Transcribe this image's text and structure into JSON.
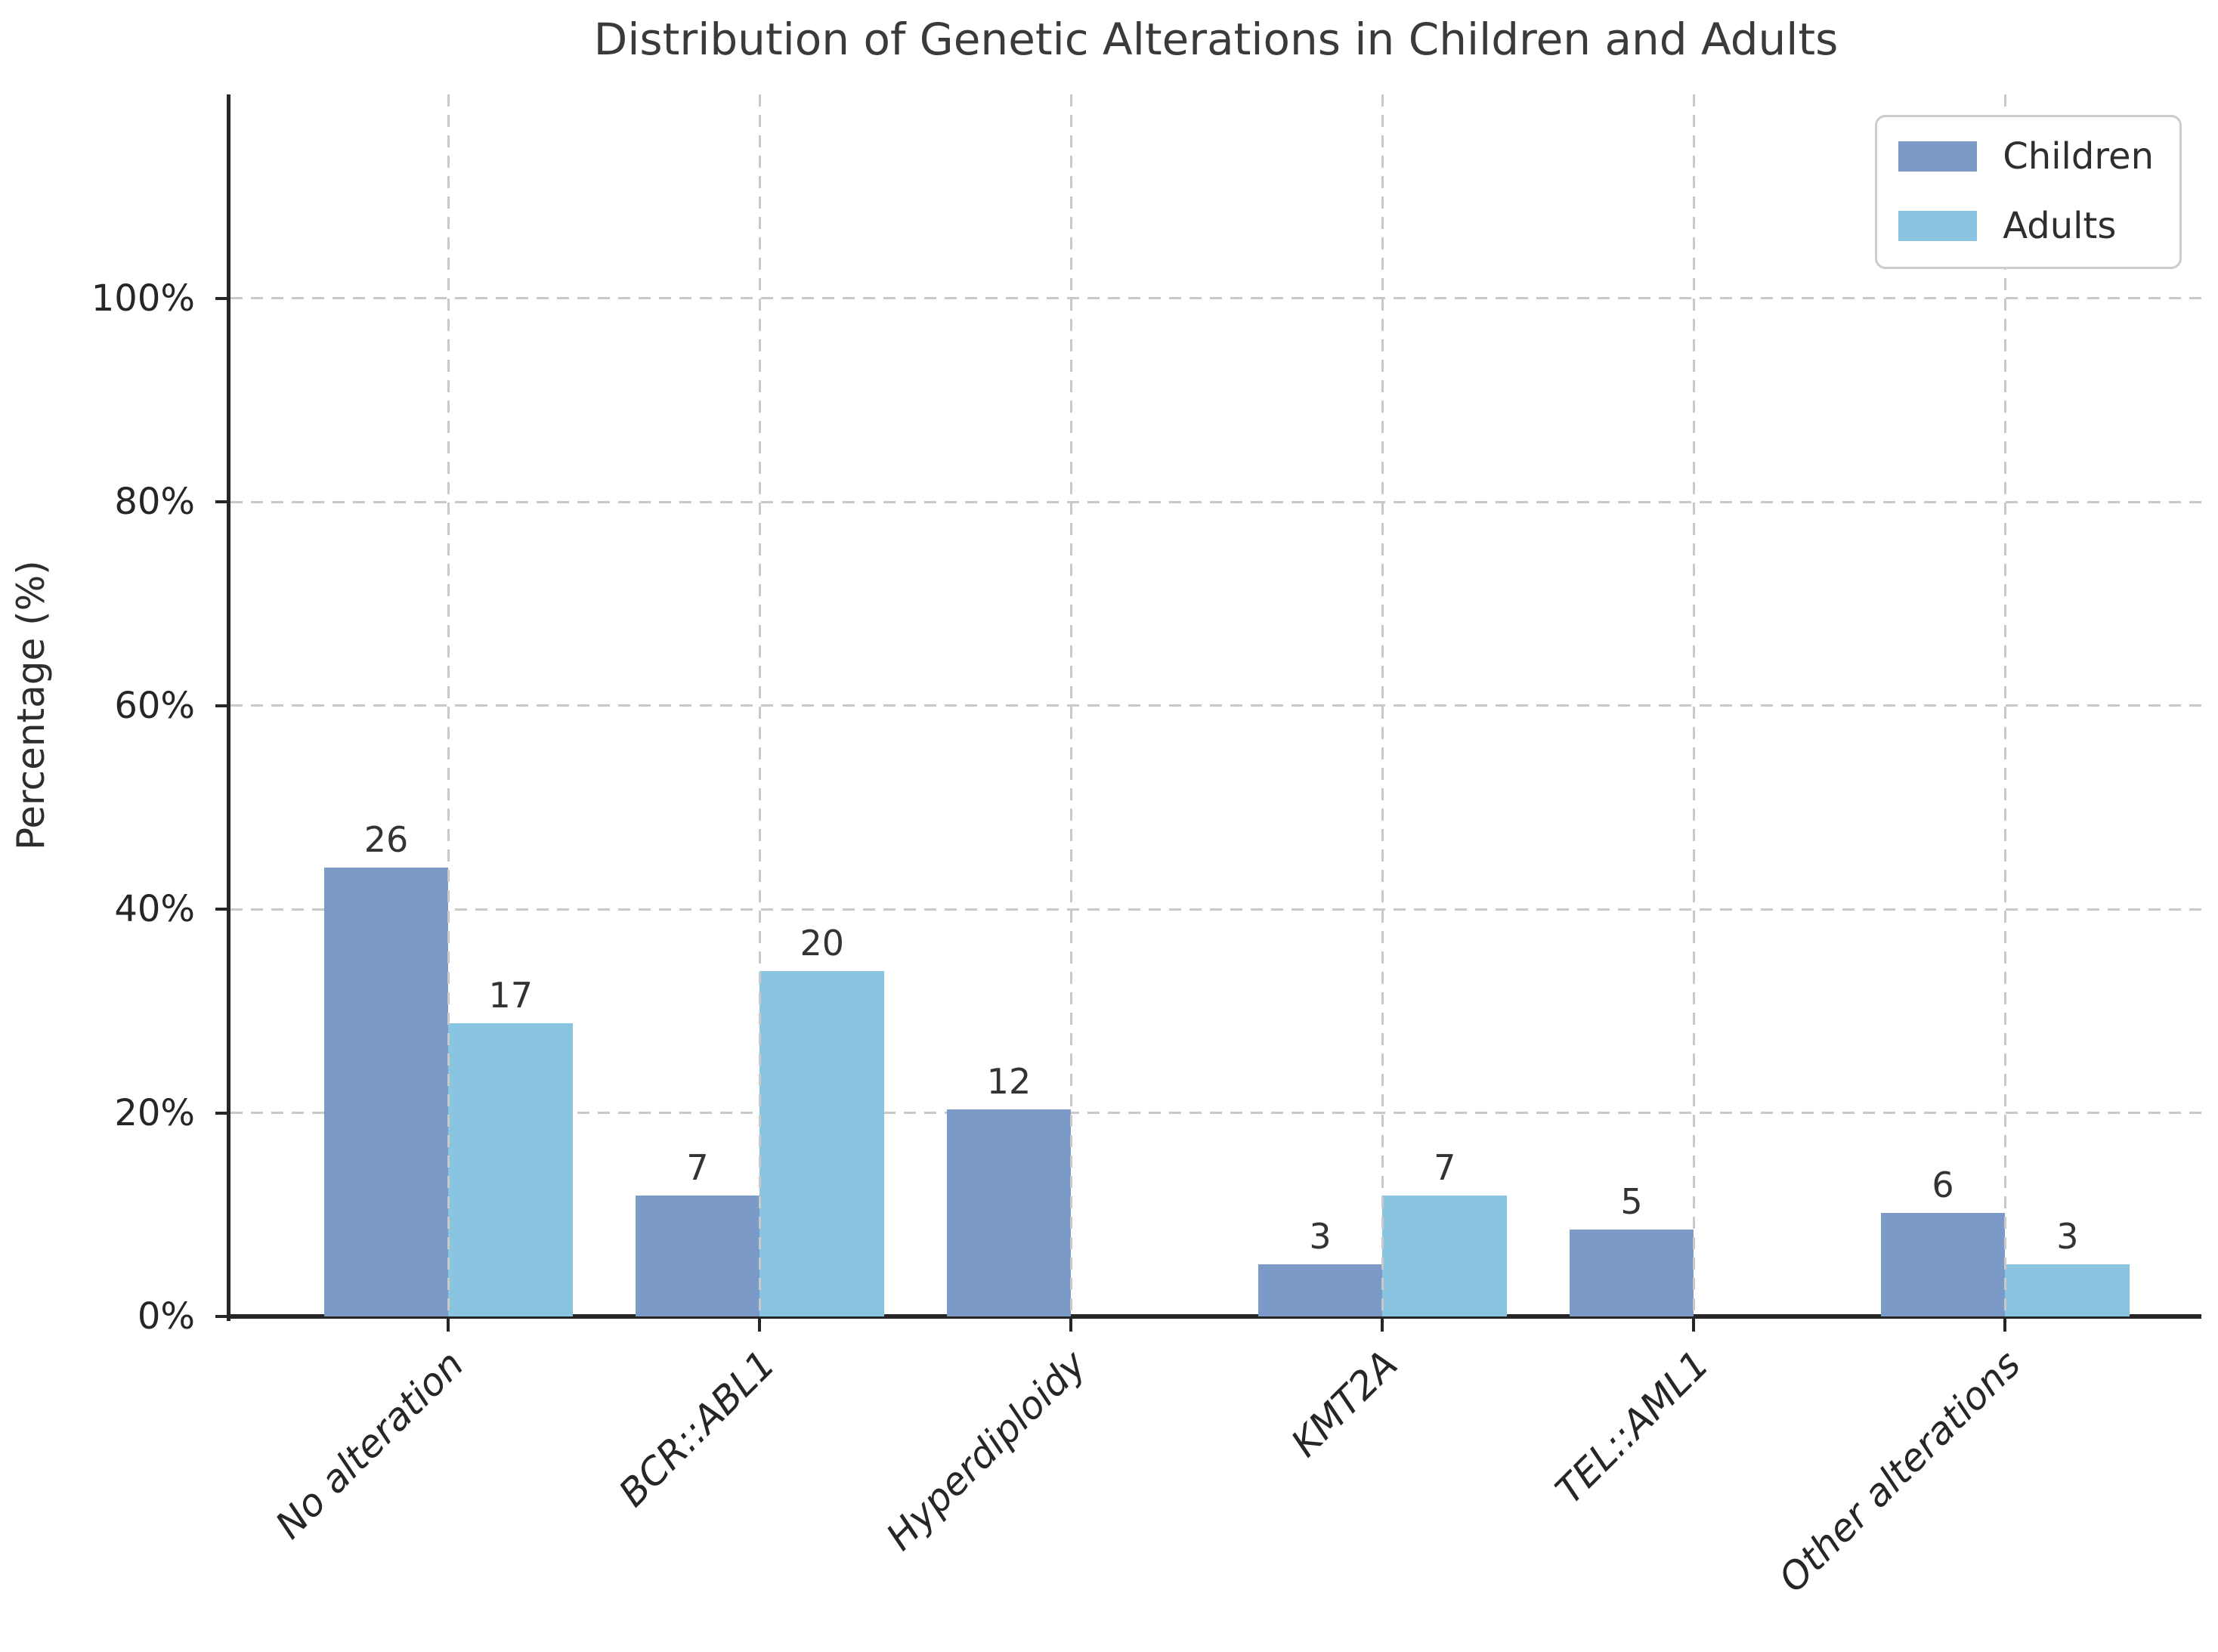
{
  "title": "Distribution of Genetic Alterations in Children and Adults",
  "ylabel": "Percentage (%)",
  "legend": {
    "position": "upper right",
    "items": [
      {
        "label": "Children",
        "color": "#7b9ac8"
      },
      {
        "label": "Adults",
        "color": "#89c4e1"
      }
    ]
  },
  "chart_data": {
    "type": "bar",
    "title": "Distribution of Genetic Alterations in Children and Adults",
    "xlabel": "",
    "ylabel": "Percentage (%)",
    "categories": [
      "No alteration",
      "BCR::ABL1",
      "Hyperdiploidy",
      "KMT2A",
      "TEL::AML1",
      "Other alterations"
    ],
    "series": [
      {
        "name": "Children",
        "color": "#7b9ac8",
        "counts": [
          26,
          7,
          12,
          3,
          5,
          6
        ],
        "percentages": [
          44.1,
          11.9,
          20.3,
          5.1,
          8.5,
          10.2
        ]
      },
      {
        "name": "Adults",
        "color": "#89c4e1",
        "counts": [
          17,
          20,
          null,
          7,
          null,
          3
        ],
        "percentages": [
          28.8,
          33.9,
          null,
          11.9,
          null,
          5.1
        ]
      }
    ],
    "bar_value_labels": "counts shown above each bar",
    "yticks": [
      {
        "value": 0,
        "label": "0%"
      },
      {
        "value": 20,
        "label": "20%"
      },
      {
        "value": 40,
        "label": "40%"
      },
      {
        "value": 60,
        "label": "60%"
      },
      {
        "value": 80,
        "label": "80%"
      },
      {
        "value": 100,
        "label": "100%"
      }
    ],
    "ylim": [
      0,
      120
    ],
    "grid": "dashed, horizontal and vertical (at category centers)",
    "legend_position": "upper right",
    "x_tick_label_style": "italic, rotated 45 degrees"
  },
  "colors": {
    "children": "#7b9ac8",
    "adults": "#89c4e1",
    "grid": "#c9c9c9",
    "spine": "#262626",
    "text": "#2e2e2e",
    "title": "#3a3a3a"
  }
}
